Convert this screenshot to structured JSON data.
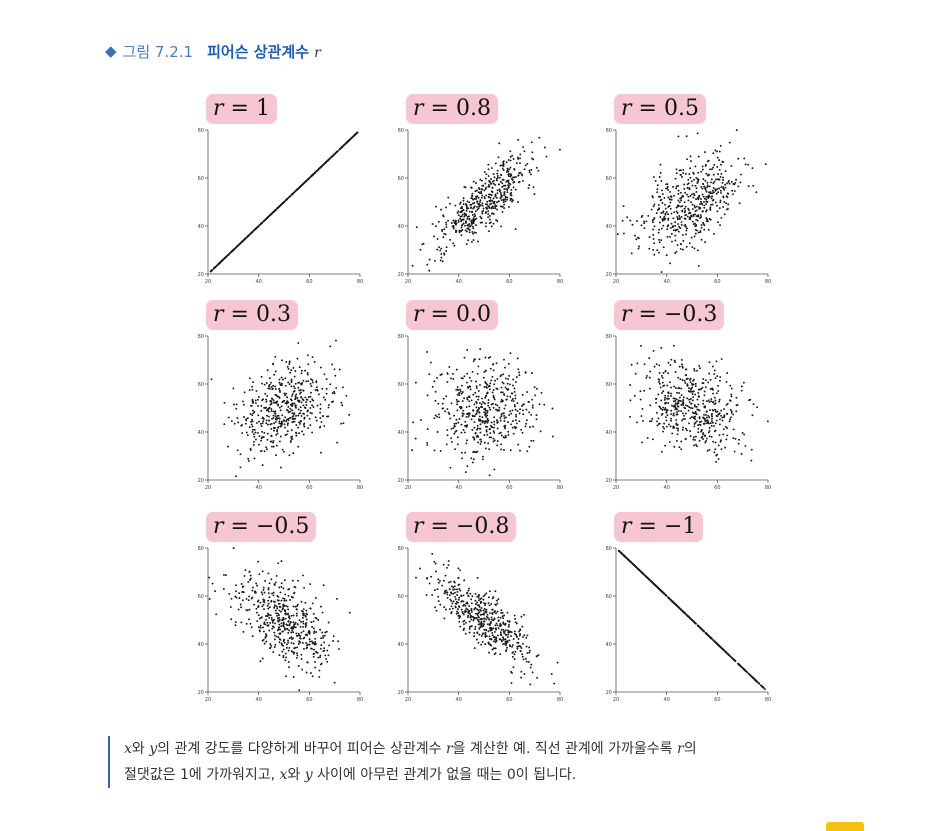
{
  "figure": {
    "prefix": "그림 7.2.1",
    "title": "피어슨 상관계수",
    "title_var": "r",
    "icon": "diamond-icon",
    "accent_color": "#1e5fb4",
    "label_bg_color": "#f7c6d3"
  },
  "chart_data": [
    {
      "type": "scatter",
      "label": "r = 1",
      "r": 1.0,
      "xlim": [
        20,
        80
      ],
      "ylim": [
        20,
        80
      ],
      "xticks": [
        "20",
        "40",
        "60",
        "80"
      ],
      "yticks": [
        "20",
        "40",
        "60",
        "80"
      ],
      "n_points": 500
    },
    {
      "type": "scatter",
      "label": "r = 0.8",
      "r": 0.8,
      "xlim": [
        20,
        80
      ],
      "ylim": [
        20,
        80
      ],
      "xticks": [
        "20",
        "40",
        "60",
        "80"
      ],
      "yticks": [
        "20",
        "40",
        "60",
        "80"
      ],
      "n_points": 500
    },
    {
      "type": "scatter",
      "label": "r = 0.5",
      "r": 0.5,
      "xlim": [
        20,
        80
      ],
      "ylim": [
        20,
        80
      ],
      "xticks": [
        "20",
        "40",
        "60",
        "80"
      ],
      "yticks": [
        "20",
        "40",
        "60",
        "80"
      ],
      "n_points": 500
    },
    {
      "type": "scatter",
      "label": "r = 0.3",
      "r": 0.3,
      "xlim": [
        20,
        80
      ],
      "ylim": [
        20,
        80
      ],
      "xticks": [
        "20",
        "40",
        "60",
        "80"
      ],
      "yticks": [
        "20",
        "40",
        "60",
        "80"
      ],
      "n_points": 500
    },
    {
      "type": "scatter",
      "label": "r = 0.0",
      "r": 0.0,
      "xlim": [
        20,
        80
      ],
      "ylim": [
        20,
        80
      ],
      "xticks": [
        "20",
        "40",
        "60",
        "80"
      ],
      "yticks": [
        "20",
        "40",
        "60",
        "80"
      ],
      "n_points": 500
    },
    {
      "type": "scatter",
      "label": "r = −0.3",
      "r": -0.3,
      "xlim": [
        20,
        80
      ],
      "ylim": [
        20,
        80
      ],
      "xticks": [
        "20",
        "40",
        "60",
        "80"
      ],
      "yticks": [
        "20",
        "40",
        "60",
        "80"
      ],
      "n_points": 500
    },
    {
      "type": "scatter",
      "label": "r = −0.5",
      "r": -0.5,
      "xlim": [
        20,
        80
      ],
      "ylim": [
        20,
        80
      ],
      "xticks": [
        "20",
        "40",
        "60",
        "80"
      ],
      "yticks": [
        "20",
        "40",
        "60",
        "80"
      ],
      "n_points": 500
    },
    {
      "type": "scatter",
      "label": "r = −0.8",
      "r": -0.8,
      "xlim": [
        20,
        80
      ],
      "ylim": [
        20,
        80
      ],
      "xticks": [
        "20",
        "40",
        "60",
        "80"
      ],
      "yticks": [
        "20",
        "40",
        "60",
        "80"
      ],
      "n_points": 500
    },
    {
      "type": "scatter",
      "label": "r = −1",
      "r": -1.0,
      "xlim": [
        20,
        80
      ],
      "ylim": [
        20,
        80
      ],
      "xticks": [
        "20",
        "40",
        "60",
        "80"
      ],
      "yticks": [
        "20",
        "40",
        "60",
        "80"
      ],
      "n_points": 500
    }
  ],
  "caption": {
    "x": "x",
    "with_x": "와 ",
    "y": "y",
    "part1": "의 관계 강도를 다양하게 바꾸어 피어슨 상관계수 ",
    "r1": "r",
    "part2": "을 계산한 예. 직선 관계에 가까울수록 ",
    "r2": "r",
    "part3": "의",
    "line2a": "절댓값은 1에 가까워지고, ",
    "x2": "x",
    "with_y": "와 ",
    "y2": "y",
    "line2b": " 사이에 아무런 관계가 없을 때는 0이 됩니다.",
    "bar_color": "#3a5fa8"
  }
}
